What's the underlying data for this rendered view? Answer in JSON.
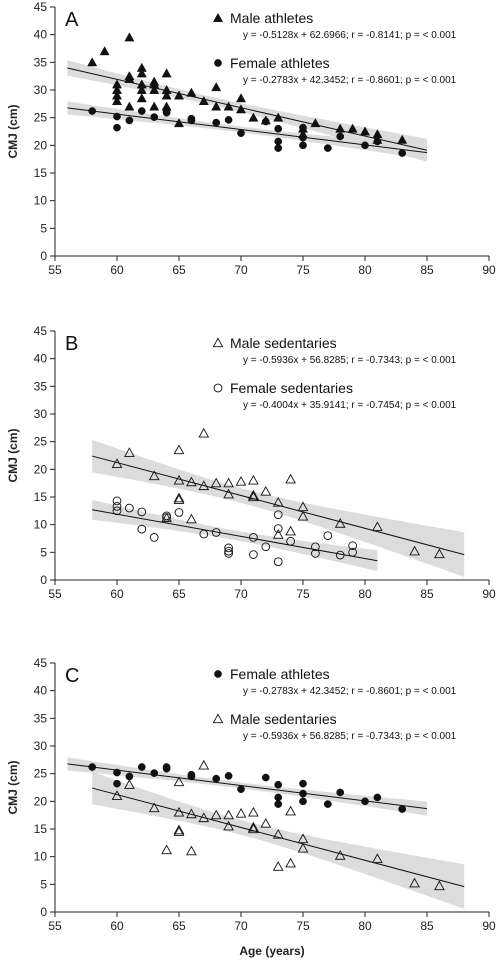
{
  "chart_data": [
    {
      "type": "scatter",
      "panel_label": "A",
      "xlabel": "",
      "ylabel": "CMJ (cm)",
      "xlim": [
        55,
        90
      ],
      "ylim": [
        0,
        45
      ],
      "xticks": [
        55,
        60,
        65,
        70,
        75,
        80,
        85,
        90
      ],
      "yticks": [
        0,
        5,
        10,
        15,
        20,
        25,
        30,
        35,
        40,
        45
      ],
      "series": [
        {
          "name": "Male athletes",
          "equation": "y = -0.5128x + 62.6966; r = -0.8141; p =  < 0.001",
          "marker": "triangle-filled",
          "slope": -0.5128,
          "intercept": 62.6966,
          "fit_range": [
            56,
            85
          ],
          "points": [
            [
              58,
              35
            ],
            [
              59,
              37
            ],
            [
              60,
              28
            ],
            [
              60,
              29
            ],
            [
              60,
              30
            ],
            [
              60,
              31
            ],
            [
              61,
              27
            ],
            [
              61,
              32
            ],
            [
              61,
              32.5
            ],
            [
              61,
              39.5
            ],
            [
              62,
              28.5
            ],
            [
              62,
              30
            ],
            [
              62,
              31
            ],
            [
              62,
              33
            ],
            [
              62,
              34
            ],
            [
              63,
              27
            ],
            [
              63,
              30
            ],
            [
              63,
              31
            ],
            [
              63,
              31.5
            ],
            [
              64,
              27
            ],
            [
              64,
              29
            ],
            [
              64,
              30
            ],
            [
              64,
              33
            ],
            [
              65,
              24
            ],
            [
              65,
              29
            ],
            [
              66,
              29.5
            ],
            [
              67,
              28
            ],
            [
              68,
              27
            ],
            [
              68,
              30.5
            ],
            [
              69,
              27
            ],
            [
              70,
              26.5
            ],
            [
              70,
              28.5
            ],
            [
              71,
              25
            ],
            [
              72,
              24.5
            ],
            [
              73,
              25
            ],
            [
              75,
              23
            ],
            [
              75,
              22
            ],
            [
              76,
              24
            ],
            [
              78,
              23
            ],
            [
              79,
              23
            ],
            [
              80,
              22.5
            ],
            [
              81,
              22
            ],
            [
              81,
              21
            ],
            [
              83,
              21
            ]
          ]
        },
        {
          "name": "Female athletes",
          "equation": "y = -0.2783x + 42.3452; r = -0.8601; p =  < 0.001",
          "marker": "circle-filled",
          "slope": -0.2783,
          "intercept": 42.3452,
          "fit_range": [
            56,
            85
          ],
          "points": [
            [
              58,
              26.2
            ],
            [
              60,
              25.2
            ],
            [
              60,
              23.2
            ],
            [
              61,
              24.5
            ],
            [
              62,
              26.2
            ],
            [
              63,
              25.1
            ],
            [
              64,
              25.9
            ],
            [
              64,
              26.2
            ],
            [
              66,
              24.8
            ],
            [
              66,
              24.5
            ],
            [
              68,
              24.1
            ],
            [
              69,
              24.6
            ],
            [
              70,
              22.2
            ],
            [
              72,
              24.3
            ],
            [
              73,
              23
            ],
            [
              73,
              19.5
            ],
            [
              73,
              20.7
            ],
            [
              75,
              23.2
            ],
            [
              75,
              20
            ],
            [
              75,
              21.4
            ],
            [
              77,
              19.5
            ],
            [
              78,
              21.6
            ],
            [
              80,
              20
            ],
            [
              81,
              20.7
            ],
            [
              83,
              18.6
            ]
          ]
        }
      ]
    },
    {
      "type": "scatter",
      "panel_label": "B",
      "xlabel": "",
      "ylabel": "CMJ  (cm)",
      "xlim": [
        55,
        90
      ],
      "ylim": [
        0,
        45
      ],
      "xticks": [
        55,
        60,
        65,
        70,
        75,
        80,
        85,
        90
      ],
      "yticks": [
        0,
        5,
        10,
        15,
        20,
        25,
        30,
        35,
        40,
        45
      ],
      "series": [
        {
          "name": "Male sedentaries",
          "equation": "y = -0.5936x + 56.8285; r = -0.7343; p =  < 0.001",
          "marker": "triangle-open",
          "slope": -0.5936,
          "intercept": 56.8285,
          "fit_range": [
            58,
            88
          ],
          "points": [
            [
              60,
              21
            ],
            [
              61,
              23
            ],
            [
              63,
              18.8
            ],
            [
              64,
              11.2
            ],
            [
              65,
              23.5
            ],
            [
              65,
              18
            ],
            [
              65,
              14.5
            ],
            [
              65,
              14.8
            ],
            [
              66,
              17.7
            ],
            [
              66,
              11
            ],
            [
              67,
              26.5
            ],
            [
              67,
              17
            ],
            [
              68,
              17.5
            ],
            [
              69,
              17.5
            ],
            [
              69,
              15.5
            ],
            [
              70,
              17.8
            ],
            [
              71,
              18
            ],
            [
              71,
              15
            ],
            [
              71,
              15.3
            ],
            [
              72,
              16
            ],
            [
              73,
              8.2
            ],
            [
              73,
              14
            ],
            [
              74,
              18.2
            ],
            [
              74,
              8.8
            ],
            [
              75,
              11.5
            ],
            [
              75,
              13.2
            ],
            [
              78,
              10.2
            ],
            [
              81,
              9.6
            ],
            [
              84,
              5.2
            ],
            [
              86,
              4.7
            ]
          ]
        },
        {
          "name": "Female sedentaries",
          "equation": "y = -0.4004x + 35.9141; r = -0.7454; p =  < 0.001",
          "marker": "circle-open",
          "slope": -0.4004,
          "intercept": 35.9141,
          "fit_range": [
            58,
            81
          ],
          "points": [
            [
              60,
              14.3
            ],
            [
              60,
              13.3
            ],
            [
              60,
              12.5
            ],
            [
              61,
              13
            ],
            [
              62,
              12.3
            ],
            [
              62,
              9.2
            ],
            [
              63,
              7.7
            ],
            [
              64,
              11.3
            ],
            [
              64,
              11.6
            ],
            [
              65,
              12.2
            ],
            [
              67,
              8.3
            ],
            [
              68,
              8.6
            ],
            [
              69,
              5.2
            ],
            [
              69,
              5.8
            ],
            [
              69,
              4.8
            ],
            [
              71,
              7.7
            ],
            [
              71,
              4.6
            ],
            [
              72,
              6
            ],
            [
              73,
              11.8
            ],
            [
              73,
              9.3
            ],
            [
              73,
              3.3
            ],
            [
              74,
              7
            ],
            [
              76,
              6
            ],
            [
              76,
              4.8
            ],
            [
              77,
              8
            ],
            [
              78,
              4.5
            ],
            [
              79,
              6.2
            ],
            [
              79,
              5
            ]
          ]
        }
      ]
    },
    {
      "type": "scatter",
      "panel_label": "C",
      "xlabel": "Age (years)",
      "ylabel": "CMJ (cm)",
      "xlim": [
        55,
        90
      ],
      "ylim": [
        0,
        45
      ],
      "xticks": [
        55,
        60,
        65,
        70,
        75,
        80,
        85,
        90
      ],
      "yticks": [
        0,
        5,
        10,
        15,
        20,
        25,
        30,
        35,
        40,
        45
      ],
      "series": [
        {
          "name": "Female athletes",
          "equation": "y = -0.2783x + 42.3452; r = -0.8601; p =  < 0.001",
          "marker": "circle-filled",
          "slope": -0.2783,
          "intercept": 42.3452,
          "fit_range": [
            56,
            85
          ],
          "points": [
            [
              58,
              26.2
            ],
            [
              60,
              25.2
            ],
            [
              60,
              23.2
            ],
            [
              61,
              24.5
            ],
            [
              62,
              26.2
            ],
            [
              63,
              25.1
            ],
            [
              64,
              25.9
            ],
            [
              64,
              26.2
            ],
            [
              66,
              24.8
            ],
            [
              66,
              24.5
            ],
            [
              68,
              24.1
            ],
            [
              69,
              24.6
            ],
            [
              70,
              22.2
            ],
            [
              72,
              24.3
            ],
            [
              73,
              23
            ],
            [
              73,
              19.5
            ],
            [
              73,
              20.7
            ],
            [
              75,
              23.2
            ],
            [
              75,
              20
            ],
            [
              75,
              21.4
            ],
            [
              77,
              19.5
            ],
            [
              78,
              21.6
            ],
            [
              80,
              20
            ],
            [
              81,
              20.7
            ],
            [
              83,
              18.6
            ]
          ]
        },
        {
          "name": "Male sedentaries",
          "equation": "y = -0.5936x + 56.8285; r = -0.7343; p =  < 0.001",
          "marker": "triangle-open",
          "slope": -0.5936,
          "intercept": 56.8285,
          "fit_range": [
            58,
            88
          ],
          "points": [
            [
              60,
              21
            ],
            [
              61,
              23
            ],
            [
              63,
              18.8
            ],
            [
              64,
              11.2
            ],
            [
              65,
              23.5
            ],
            [
              65,
              18
            ],
            [
              65,
              14.5
            ],
            [
              65,
              14.8
            ],
            [
              66,
              17.7
            ],
            [
              66,
              11
            ],
            [
              67,
              26.5
            ],
            [
              67,
              17
            ],
            [
              68,
              17.5
            ],
            [
              69,
              17.5
            ],
            [
              69,
              15.5
            ],
            [
              70,
              17.8
            ],
            [
              71,
              18
            ],
            [
              71,
              15
            ],
            [
              71,
              15.3
            ],
            [
              72,
              16
            ],
            [
              73,
              8.2
            ],
            [
              73,
              14
            ],
            [
              74,
              18.2
            ],
            [
              74,
              8.8
            ],
            [
              75,
              11.5
            ],
            [
              75,
              13.2
            ],
            [
              78,
              10.2
            ],
            [
              81,
              9.6
            ],
            [
              84,
              5.2
            ],
            [
              86,
              4.7
            ]
          ]
        }
      ]
    }
  ],
  "colors": {
    "confidence_band": "#dcdcdc",
    "marker": "#111111",
    "axis": "#222222"
  }
}
